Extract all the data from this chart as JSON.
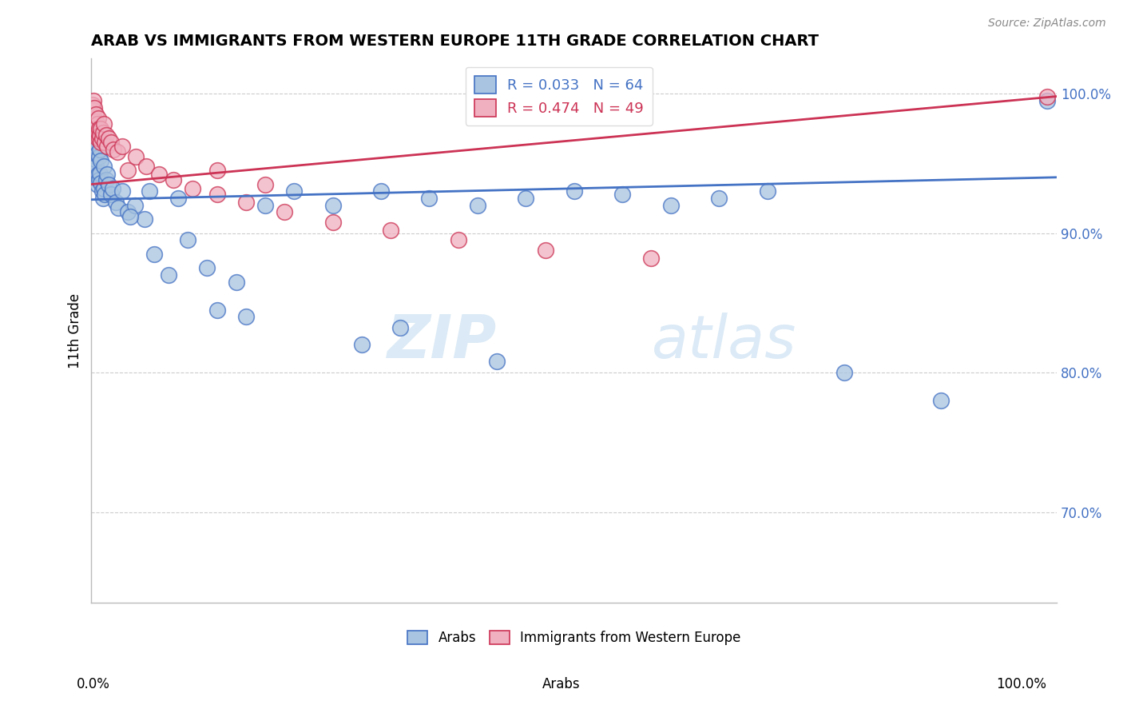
{
  "title": "ARAB VS IMMIGRANTS FROM WESTERN EUROPE 11TH GRADE CORRELATION CHART",
  "source": "Source: ZipAtlas.com",
  "ylabel": "11th Grade",
  "xlim": [
    0.0,
    1.0
  ],
  "ylim": [
    0.635,
    1.025
  ],
  "blue_R": 0.033,
  "blue_N": 64,
  "pink_R": 0.474,
  "pink_N": 49,
  "blue_color": "#a8c4e0",
  "pink_color": "#f0b0c0",
  "blue_line_color": "#4472c4",
  "pink_line_color": "#cc3355",
  "watermark_zip": "ZIP",
  "watermark_atlas": "atlas",
  "grid_color": "#cccccc",
  "blue_scatter_x": [
    0.001,
    0.002,
    0.002,
    0.003,
    0.003,
    0.003,
    0.004,
    0.004,
    0.005,
    0.005,
    0.006,
    0.006,
    0.007,
    0.007,
    0.008,
    0.008,
    0.009,
    0.009,
    0.01,
    0.01,
    0.011,
    0.012,
    0.013,
    0.013,
    0.014,
    0.015,
    0.016,
    0.018,
    0.02,
    0.022,
    0.025,
    0.028,
    0.032,
    0.038,
    0.045,
    0.055,
    0.065,
    0.08,
    0.1,
    0.12,
    0.15,
    0.18,
    0.21,
    0.25,
    0.3,
    0.35,
    0.4,
    0.45,
    0.5,
    0.55,
    0.6,
    0.65,
    0.7,
    0.04,
    0.06,
    0.09,
    0.13,
    0.16,
    0.28,
    0.32,
    0.42,
    0.78,
    0.88,
    0.99
  ],
  "blue_scatter_y": [
    0.955,
    0.95,
    0.96,
    0.945,
    0.958,
    0.965,
    0.94,
    0.953,
    0.948,
    0.962,
    0.935,
    0.957,
    0.942,
    0.968,
    0.938,
    0.955,
    0.943,
    0.96,
    0.936,
    0.952,
    0.93,
    0.925,
    0.932,
    0.948,
    0.928,
    0.938,
    0.942,
    0.935,
    0.928,
    0.932,
    0.922,
    0.918,
    0.93,
    0.915,
    0.92,
    0.91,
    0.885,
    0.87,
    0.895,
    0.875,
    0.865,
    0.92,
    0.93,
    0.92,
    0.93,
    0.925,
    0.92,
    0.925,
    0.93,
    0.928,
    0.92,
    0.925,
    0.93,
    0.912,
    0.93,
    0.925,
    0.845,
    0.84,
    0.82,
    0.832,
    0.808,
    0.8,
    0.78,
    0.995
  ],
  "pink_scatter_x": [
    0.001,
    0.001,
    0.002,
    0.002,
    0.002,
    0.003,
    0.003,
    0.003,
    0.004,
    0.004,
    0.005,
    0.005,
    0.006,
    0.006,
    0.007,
    0.007,
    0.008,
    0.008,
    0.009,
    0.01,
    0.01,
    0.011,
    0.012,
    0.013,
    0.014,
    0.015,
    0.016,
    0.018,
    0.02,
    0.023,
    0.027,
    0.032,
    0.038,
    0.046,
    0.057,
    0.07,
    0.085,
    0.105,
    0.13,
    0.16,
    0.2,
    0.25,
    0.31,
    0.38,
    0.47,
    0.58,
    0.18,
    0.13,
    0.99
  ],
  "pink_scatter_y": [
    0.992,
    0.985,
    0.988,
    0.978,
    0.995,
    0.982,
    0.975,
    0.99,
    0.98,
    0.972,
    0.975,
    0.985,
    0.978,
    0.968,
    0.972,
    0.982,
    0.968,
    0.975,
    0.97,
    0.965,
    0.975,
    0.968,
    0.972,
    0.978,
    0.965,
    0.97,
    0.962,
    0.968,
    0.965,
    0.96,
    0.958,
    0.962,
    0.945,
    0.955,
    0.948,
    0.942,
    0.938,
    0.932,
    0.928,
    0.922,
    0.915,
    0.908,
    0.902,
    0.895,
    0.888,
    0.882,
    0.935,
    0.945,
    0.998
  ]
}
